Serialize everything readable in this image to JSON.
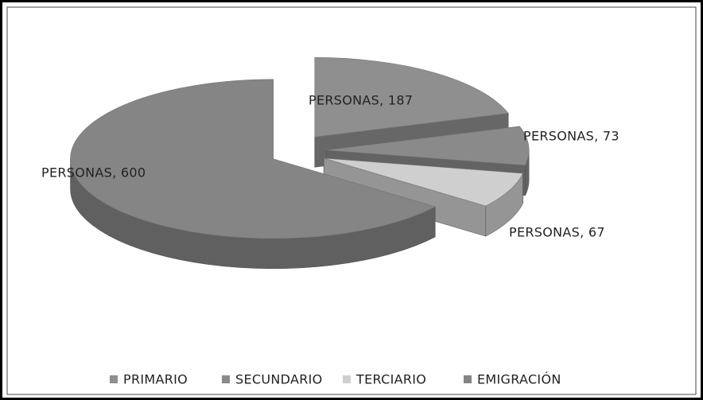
{
  "chart_data": {
    "type": "pie3d",
    "categories": [
      "PRIMARIO",
      "SECUNDARIO",
      "TERCIARIO",
      "EMIGRACIÓN"
    ],
    "values": [
      187,
      73,
      67,
      600
    ],
    "value_labels": [
      "PERSONAS, 187",
      "PERSONAS, 73",
      "PERSONAS, 67",
      "PERSONAS, 600"
    ],
    "colors": [
      "#8f8f8f",
      "#8a8a8a",
      "#cfcfcf",
      "#858585"
    ],
    "legend": "bottom"
  }
}
